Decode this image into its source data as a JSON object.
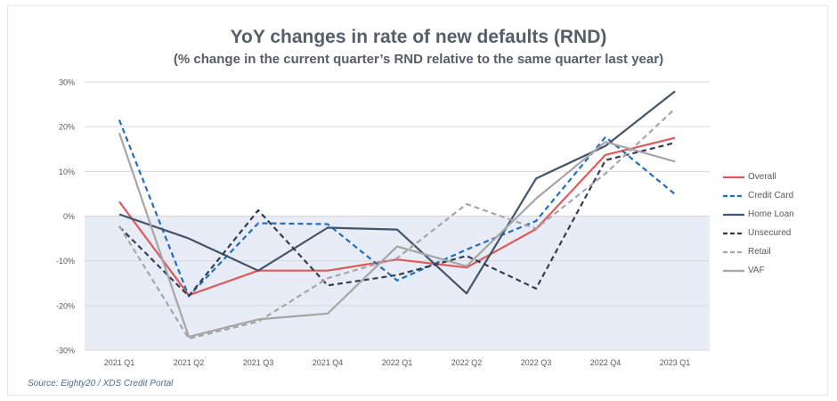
{
  "header": {
    "title": "YoY changes in rate of new defaults (RND)",
    "subtitle": "(% change in the current quarter’s RND relative to the same quarter last year)"
  },
  "footer": {
    "source": "Source: Eighty20 / XDS Credit Portal"
  },
  "chart_data": {
    "type": "line",
    "title": "YoY changes in rate of new defaults (RND)",
    "subtitle": "(% change in the current quarter’s RND relative to the same quarter last year)",
    "categories": [
      "2021 Q1",
      "2021 Q2",
      "2021 Q3",
      "2021 Q4",
      "2022 Q1",
      "2022 Q2",
      "2022 Q3",
      "2022 Q4",
      "2023 Q1"
    ],
    "ylim": [
      -30,
      30
    ],
    "yticks": [
      30,
      20,
      10,
      0,
      -10,
      -20,
      -30
    ],
    "ytick_labels": [
      "30%",
      "20%",
      "10%",
      "0%",
      "-10%",
      "-20%",
      "-30%"
    ],
    "negative_region_shaded": true,
    "shade_color": "#e8ecf6",
    "grid": true,
    "legend_position": "right",
    "series": [
      {
        "name": "Overall",
        "color": "#e05a5a",
        "dash": "solid",
        "values": [
          3.2,
          -17.7,
          -12.2,
          -12.2,
          -9.7,
          -11.5,
          -2.9,
          13.7,
          17.5
        ]
      },
      {
        "name": "Credit Card",
        "color": "#1f6fbf",
        "dash": "dashed",
        "values": [
          21.5,
          -17.9,
          -1.6,
          -1.8,
          -14.4,
          -7.5,
          -1.1,
          17.7,
          4.9
        ]
      },
      {
        "name": "Home Loan",
        "color": "#44546a",
        "dash": "solid",
        "values": [
          0.4,
          -5.0,
          -12.2,
          -2.6,
          -3.0,
          -17.3,
          8.4,
          15.7,
          27.9
        ]
      },
      {
        "name": "Unsecured",
        "color": "#323f53",
        "dash": "dashed",
        "values": [
          -2.4,
          -17.9,
          1.3,
          -15.5,
          -13.2,
          -8.9,
          -16.2,
          12.5,
          16.4
        ]
      },
      {
        "name": "Retail",
        "color": "#a6a6a6",
        "dash": "dashed",
        "values": [
          -2.2,
          -27.4,
          -23.6,
          -13.9,
          -9.4,
          2.7,
          -2.8,
          9.5,
          24.0
        ]
      },
      {
        "name": "VAF",
        "color": "#a6a6a6",
        "dash": "solid",
        "values": [
          18.6,
          -27.0,
          -23.1,
          -21.8,
          -6.8,
          -11.2,
          3.9,
          16.6,
          12.2
        ]
      }
    ]
  }
}
